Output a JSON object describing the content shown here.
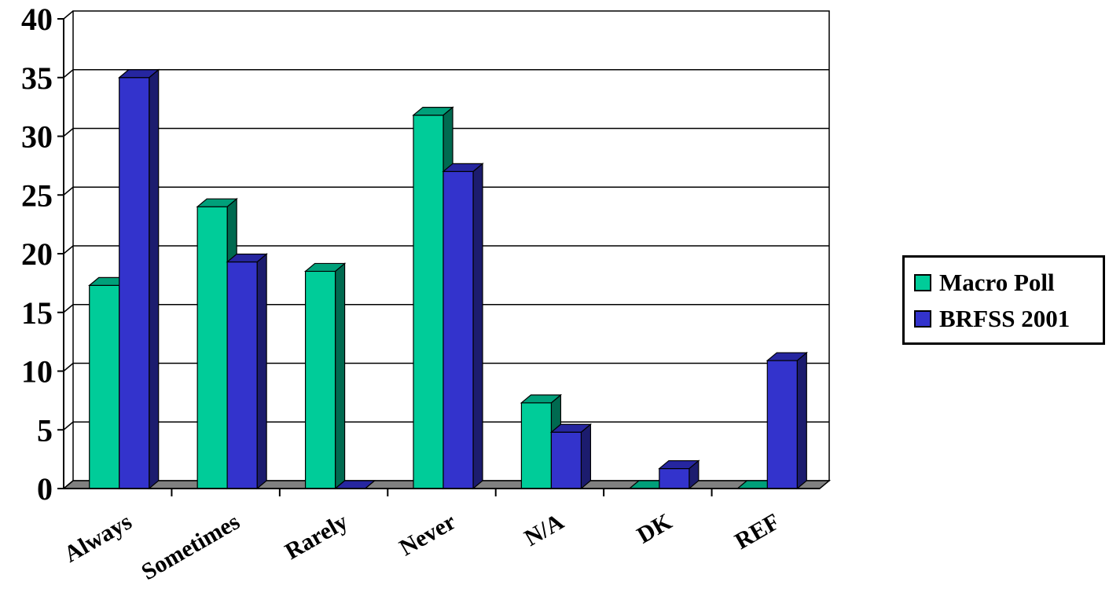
{
  "chart_data": {
    "type": "bar",
    "style": "3d-clustered-column",
    "categories": [
      "Always",
      "Sometimes",
      "Rarely",
      "Never",
      "N/A",
      "DK",
      "REF"
    ],
    "series": [
      {
        "name": "Macro Poll",
        "values": [
          17.3,
          24.0,
          18.5,
          31.8,
          7.3,
          0,
          0
        ],
        "color": "#00cc99",
        "side_color": "#006a50",
        "top_color": "#00a07a"
      },
      {
        "name": "BRFSS 2001",
        "values": [
          35.0,
          19.3,
          0,
          27.0,
          4.8,
          1.7,
          10.9
        ],
        "color": "#3333cc",
        "side_color": "#1c1c6e",
        "top_color": "#2626a0"
      }
    ],
    "ylim": [
      0,
      40
    ],
    "yticks": [
      "0",
      "5",
      "10",
      "15",
      "20",
      "25",
      "30",
      "35",
      "40"
    ],
    "grid": true,
    "legend_position": "right",
    "floor_color": "#808080"
  }
}
